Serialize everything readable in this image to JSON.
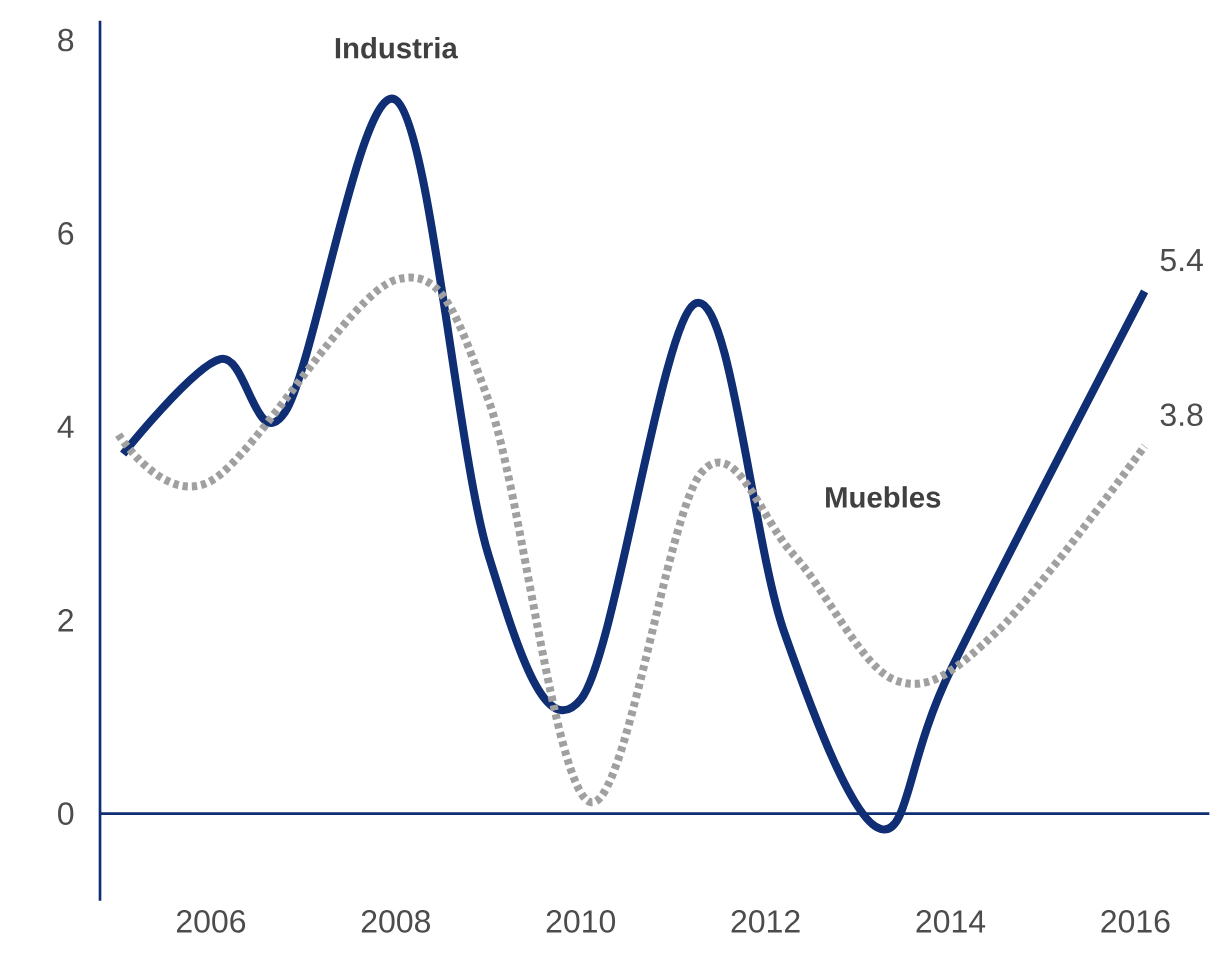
{
  "chart_data": {
    "type": "line",
    "xlim": [
      2004.8,
      2016.8
    ],
    "ylim": [
      -0.9,
      8.2
    ],
    "xticks": [
      2006,
      2008,
      2010,
      2012,
      2014,
      2016
    ],
    "yticks": [
      0,
      2,
      4,
      6,
      8
    ],
    "series": [
      {
        "name": "Industria",
        "color": "#0f2e74",
        "line_style": "solid",
        "x": [
          2005.05,
          2006.1,
          2006.8,
          2008.0,
          2009.0,
          2010.0,
          2011.25,
          2012.2,
          2013.25,
          2014.0,
          2016.1
        ],
        "values": [
          3.72,
          4.7,
          4.15,
          7.38,
          2.68,
          1.18,
          5.28,
          1.88,
          -0.16,
          1.48,
          5.4
        ]
      },
      {
        "name": "Muebles",
        "color": "#a0a0a0",
        "line_style": "dotted",
        "x": [
          2005.0,
          2006.0,
          2008.0,
          2009.0,
          2010.1,
          2011.3,
          2012.3,
          2013.4,
          2014.5,
          2016.1
        ],
        "values": [
          3.92,
          3.44,
          5.52,
          4.28,
          0.12,
          3.52,
          2.68,
          1.38,
          1.88,
          3.8
        ]
      }
    ],
    "ref_lines": [
      {
        "axis": "y",
        "value": 0,
        "color": "#0f2e74"
      }
    ],
    "annotations": [
      {
        "text": "5.4",
        "x": 2016.1,
        "y": 5.4
      },
      {
        "text": "3.8",
        "x": 2016.1,
        "y": 3.8
      }
    ],
    "grid": false
  }
}
